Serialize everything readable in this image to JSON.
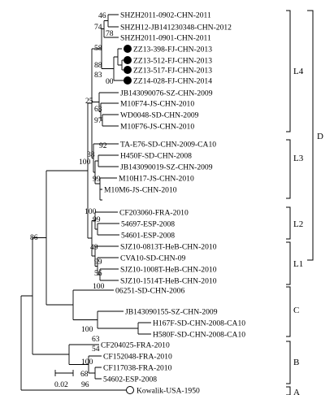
{
  "tree": {
    "taxa": [
      "SHZH2011-0902-CHN-2011",
      "SHZH12-JB141230348-CHN-2012",
      "SHZH2011-0901-CHN-2011",
      "ZZ13-398-FJ-CHN-2013",
      "ZZ13-512-FJ-CHN-2013",
      "ZZ13-517-FJ-CHN-2013",
      "ZZ14-028-FJ-CHN-2014",
      "JB143090076-SZ-CHN-2009",
      "M10F74-JS-CHN-2010",
      "WD0048-SD-CHN-2009",
      "M10F76-JS-CHN-2010",
      "TA-E76-SD-CHN-2009-CA10",
      "H450F-SD-CHN-2008",
      "JB143090019-SZ-CHN-2009",
      "M10H17-JS-CHN-2010",
      "M10M6-JS-CHN-2010",
      "CF203060-FRA-2010",
      "54697-ESP-2008",
      "54601-ESP-2008",
      "SJZ10-0813T-HeB-CHN-2010",
      "CVA10-SD-CHN-09",
      "SJZ10-1008T-HeB-CHN-2010",
      "SJZ10-1514T-HeB-CHN-2010",
      "06251-SD-CHN-2006",
      "JB143090155-SZ-CHN-2009",
      "H167F-SD-CHN-2008-CA10",
      "H580F-SD-CHN-2008-CA10",
      "CF204025-FRA-2010",
      "CF152048-FRA-2010",
      "CF117038-FRA-2010",
      "54602-ESP-2008",
      "Kowalik-USA-1950"
    ],
    "bootstrap": [
      "46",
      "74",
      "78",
      "58",
      "88",
      "83",
      "00",
      "25",
      "63",
      "97",
      "92",
      "38",
      "100",
      "99",
      "100",
      "99",
      "49",
      "99",
      "56",
      "100",
      "100",
      "63",
      "54",
      "100",
      "68",
      "96",
      "86"
    ],
    "groups": [
      "L4",
      "L3",
      "L2",
      "L1",
      "D",
      "C",
      "B",
      "A"
    ],
    "scale_label": "0.02"
  }
}
